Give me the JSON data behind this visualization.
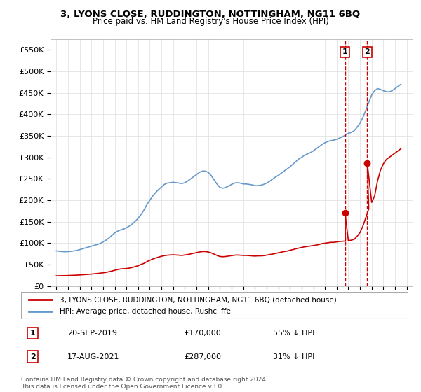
{
  "title": "3, LYONS CLOSE, RUDDINGTON, NOTTINGHAM, NG11 6BQ",
  "subtitle": "Price paid vs. HM Land Registry's House Price Index (HPI)",
  "legend_line1": "3, LYONS CLOSE, RUDDINGTON, NOTTINGHAM, NG11 6BQ (detached house)",
  "legend_line2": "HPI: Average price, detached house, Rushcliffe",
  "transaction1_label": "1",
  "transaction1_date": "20-SEP-2019",
  "transaction1_price": "£170,000",
  "transaction1_hpi": "55% ↓ HPI",
  "transaction1_year": 2019.72,
  "transaction1_value": 170000,
  "transaction2_label": "2",
  "transaction2_date": "17-AUG-2021",
  "transaction2_price": "£287,000",
  "transaction2_hpi": "31% ↓ HPI",
  "transaction2_year": 2021.62,
  "transaction2_value": 287000,
  "footer": "Contains HM Land Registry data © Crown copyright and database right 2024.\nThis data is licensed under the Open Government Licence v3.0.",
  "hpi_color": "#6699cc",
  "property_color": "#cc0000",
  "marker_color": "#cc0000",
  "background_color": "#ffffff",
  "grid_color": "#dddddd",
  "ylim": [
    0,
    575000
  ],
  "yticks": [
    0,
    50000,
    100000,
    150000,
    200000,
    250000,
    300000,
    350000,
    400000,
    450000,
    500000,
    550000
  ],
  "hpi_data": {
    "years": [
      1995.0,
      1995.25,
      1995.5,
      1995.75,
      1996.0,
      1996.25,
      1996.5,
      1996.75,
      1997.0,
      1997.25,
      1997.5,
      1997.75,
      1998.0,
      1998.25,
      1998.5,
      1998.75,
      1999.0,
      1999.25,
      1999.5,
      1999.75,
      2000.0,
      2000.25,
      2000.5,
      2000.75,
      2001.0,
      2001.25,
      2001.5,
      2001.75,
      2002.0,
      2002.25,
      2002.5,
      2002.75,
      2003.0,
      2003.25,
      2003.5,
      2003.75,
      2004.0,
      2004.25,
      2004.5,
      2004.75,
      2005.0,
      2005.25,
      2005.5,
      2005.75,
      2006.0,
      2006.25,
      2006.5,
      2006.75,
      2007.0,
      2007.25,
      2007.5,
      2007.75,
      2008.0,
      2008.25,
      2008.5,
      2008.75,
      2009.0,
      2009.25,
      2009.5,
      2009.75,
      2010.0,
      2010.25,
      2010.5,
      2010.75,
      2011.0,
      2011.25,
      2011.5,
      2011.75,
      2012.0,
      2012.25,
      2012.5,
      2012.75,
      2013.0,
      2013.25,
      2013.5,
      2013.75,
      2014.0,
      2014.25,
      2014.5,
      2014.75,
      2015.0,
      2015.25,
      2015.5,
      2015.75,
      2016.0,
      2016.25,
      2016.5,
      2016.75,
      2017.0,
      2017.25,
      2017.5,
      2017.75,
      2018.0,
      2018.25,
      2018.5,
      2018.75,
      2019.0,
      2019.25,
      2019.5,
      2019.75,
      2020.0,
      2020.25,
      2020.5,
      2020.75,
      2021.0,
      2021.25,
      2021.5,
      2021.75,
      2022.0,
      2022.25,
      2022.5,
      2022.75,
      2023.0,
      2023.25,
      2023.5,
      2023.75,
      2024.0,
      2024.25,
      2024.5
    ],
    "values": [
      82000,
      81000,
      80500,
      80000,
      80500,
      81000,
      82000,
      83000,
      85000,
      87000,
      89000,
      91000,
      93000,
      95000,
      97000,
      99000,
      103000,
      107000,
      112000,
      118000,
      124000,
      128000,
      131000,
      133000,
      136000,
      140000,
      145000,
      151000,
      158000,
      167000,
      177000,
      190000,
      200000,
      210000,
      218000,
      225000,
      231000,
      237000,
      240000,
      241000,
      242000,
      241000,
      240000,
      239000,
      241000,
      245000,
      250000,
      255000,
      260000,
      265000,
      268000,
      268000,
      265000,
      258000,
      248000,
      238000,
      230000,
      228000,
      230000,
      233000,
      237000,
      240000,
      241000,
      240000,
      238000,
      238000,
      237000,
      236000,
      234000,
      234000,
      235000,
      237000,
      240000,
      244000,
      249000,
      254000,
      258000,
      263000,
      268000,
      273000,
      278000,
      284000,
      290000,
      296000,
      300000,
      305000,
      308000,
      311000,
      315000,
      320000,
      325000,
      330000,
      334000,
      337000,
      339000,
      340000,
      342000,
      345000,
      348000,
      352000,
      356000,
      358000,
      362000,
      370000,
      380000,
      393000,
      410000,
      428000,
      445000,
      455000,
      460000,
      458000,
      455000,
      453000,
      452000,
      455000,
      460000,
      465000,
      470000
    ]
  },
  "property_data": {
    "years": [
      1995.0,
      1995.25,
      1995.5,
      1995.75,
      1996.0,
      1996.25,
      1996.5,
      1996.75,
      1997.0,
      1997.25,
      1997.5,
      1997.75,
      1998.0,
      1998.25,
      1998.5,
      1998.75,
      1999.0,
      1999.25,
      1999.5,
      1999.75,
      2000.0,
      2000.25,
      2000.5,
      2000.75,
      2001.0,
      2001.25,
      2001.5,
      2001.75,
      2002.0,
      2002.25,
      2002.5,
      2002.75,
      2003.0,
      2003.25,
      2003.5,
      2003.75,
      2004.0,
      2004.25,
      2004.5,
      2004.75,
      2005.0,
      2005.25,
      2005.5,
      2005.75,
      2006.0,
      2006.25,
      2006.5,
      2006.75,
      2007.0,
      2007.25,
      2007.5,
      2007.75,
      2008.0,
      2008.25,
      2008.5,
      2008.75,
      2009.0,
      2009.25,
      2009.5,
      2009.75,
      2010.0,
      2010.25,
      2010.5,
      2010.75,
      2011.0,
      2011.25,
      2011.5,
      2011.75,
      2012.0,
      2012.25,
      2012.5,
      2012.75,
      2013.0,
      2013.25,
      2013.5,
      2013.75,
      2014.0,
      2014.25,
      2014.5,
      2014.75,
      2015.0,
      2015.25,
      2015.5,
      2015.75,
      2016.0,
      2016.25,
      2016.5,
      2016.75,
      2017.0,
      2017.25,
      2017.5,
      2017.75,
      2018.0,
      2018.25,
      2018.5,
      2018.75,
      2019.0,
      2019.25,
      2019.5,
      2019.75,
      2019.72,
      2020.0,
      2020.25,
      2020.5,
      2020.75,
      2021.0,
      2021.25,
      2021.5,
      2021.75,
      2021.62,
      2022.0,
      2022.25,
      2022.5,
      2022.75,
      2023.0,
      2023.25,
      2023.5,
      2023.75,
      2024.0,
      2024.25,
      2024.5
    ],
    "values": [
      24000,
      24200,
      24300,
      24500,
      24700,
      25000,
      25300,
      25600,
      26000,
      26500,
      27000,
      27500,
      28000,
      28700,
      29500,
      30200,
      31000,
      32000,
      33500,
      35000,
      37000,
      38500,
      40000,
      40500,
      41000,
      42000,
      43500,
      45500,
      47500,
      50500,
      53000,
      57000,
      60000,
      63000,
      65500,
      67500,
      69500,
      71000,
      72000,
      72500,
      73000,
      72500,
      72000,
      71500,
      72500,
      73500,
      75000,
      76500,
      78000,
      79500,
      80500,
      80500,
      79500,
      77500,
      74500,
      71500,
      69000,
      68500,
      69000,
      70000,
      71000,
      72000,
      72500,
      72000,
      71500,
      71500,
      71000,
      70500,
      70000,
      70500,
      70500,
      71000,
      72000,
      73500,
      74500,
      76000,
      77500,
      79000,
      80500,
      81500,
      83500,
      85000,
      87000,
      88500,
      90000,
      91500,
      92500,
      93500,
      94500,
      95500,
      97000,
      99000,
      100000,
      101000,
      102000,
      102000,
      103000,
      104000,
      104500,
      105000,
      170000,
      106000,
      107000,
      109000,
      116000,
      125000,
      140000,
      160000,
      180000,
      287000,
      195000,
      210000,
      245000,
      270000,
      285000,
      295000,
      300000,
      305000,
      310000,
      315000,
      320000
    ]
  }
}
